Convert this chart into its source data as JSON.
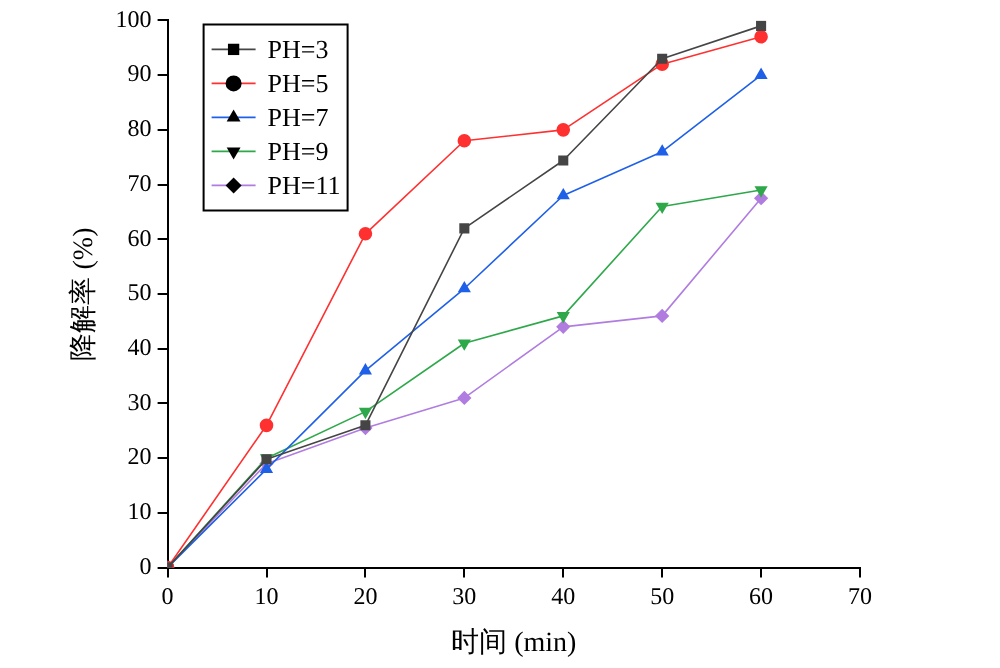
{
  "chart_data": {
    "type": "line",
    "xlabel": "时间 (min)",
    "ylabel": "降解率 (%)",
    "x": [
      0,
      10,
      20,
      30,
      40,
      50,
      60
    ],
    "xlim": [
      0,
      70
    ],
    "xticks": [
      0,
      10,
      20,
      30,
      40,
      50,
      60,
      70
    ],
    "ylim": [
      0,
      100
    ],
    "yticks": [
      0,
      10,
      20,
      30,
      40,
      50,
      60,
      70,
      80,
      90,
      100
    ],
    "grid": false,
    "legend": "top left",
    "series": [
      {
        "name": "PH=3",
        "color": "#454545",
        "marker": "square",
        "values": [
          0,
          19.8,
          26,
          62,
          74.4,
          93,
          99
        ]
      },
      {
        "name": "PH=5",
        "color": "#ff3030",
        "marker": "circle",
        "values": [
          0,
          26,
          61,
          78,
          80,
          92,
          97
        ]
      },
      {
        "name": "PH=7",
        "color": "#1f60e8",
        "marker": "triangle",
        "values": [
          0,
          18,
          36,
          51,
          68,
          76,
          90
        ]
      },
      {
        "name": "PH=9",
        "color": "#2ea84a",
        "marker": "triangle-down",
        "values": [
          0,
          20,
          28.5,
          41,
          46,
          66,
          69
        ]
      },
      {
        "name": "PH=11",
        "color": "#b07ce0",
        "marker": "diamond",
        "values": [
          0,
          19,
          25.5,
          31,
          44,
          46,
          67.5
        ]
      }
    ]
  }
}
